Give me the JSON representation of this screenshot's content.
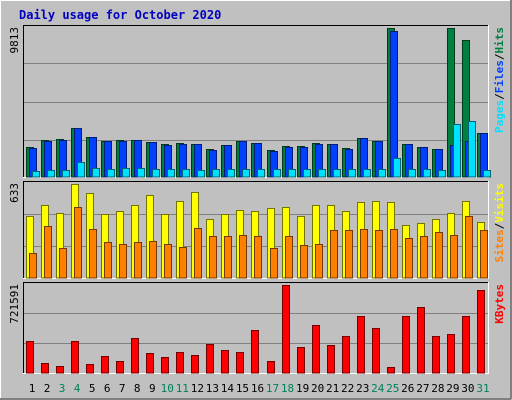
{
  "chart_data": [
    {
      "type": "bar",
      "title": "Daily usage for October 2020",
      "ymax_label": "9813",
      "ylim": [
        0,
        9813
      ],
      "legend": [
        {
          "label": "Pages",
          "color": "#00e0ff"
        },
        {
          "label": "Files",
          "color": "#0040ff"
        },
        {
          "label": "Hits",
          "color": "#008040"
        }
      ],
      "legend_separator": "/",
      "categories": [
        "1",
        "2",
        "3",
        "4",
        "5",
        "6",
        "7",
        "8",
        "9",
        "10",
        "11",
        "12",
        "13",
        "14",
        "15",
        "16",
        "17",
        "18",
        "19",
        "20",
        "21",
        "22",
        "23",
        "24",
        "25",
        "26",
        "27",
        "28",
        "29",
        "30",
        "31"
      ],
      "series": [
        {
          "name": "Hits",
          "color": "#008040",
          "values": [
            2000,
            2450,
            2500,
            3200,
            2650,
            2400,
            2450,
            2450,
            2300,
            2150,
            2250,
            2150,
            1850,
            2100,
            2400,
            2250,
            1750,
            2050,
            2050,
            2250,
            2200,
            1900,
            2600,
            2400,
            9813,
            2200,
            1950,
            1850,
            9813,
            9000,
            2900
          ]
        },
        {
          "name": "Files",
          "color": "#0040ff",
          "values": [
            1900,
            2350,
            2450,
            3200,
            2650,
            2350,
            2400,
            2450,
            2300,
            2100,
            2150,
            2150,
            1800,
            2100,
            2400,
            2250,
            1700,
            2000,
            2000,
            2200,
            2150,
            1850,
            2550,
            2350,
            9600,
            2200,
            1950,
            1850,
            2100,
            2400,
            2900
          ]
        },
        {
          "name": "Pages",
          "color": "#00e0ff",
          "values": [
            400,
            450,
            450,
            1000,
            600,
            550,
            600,
            600,
            500,
            550,
            550,
            450,
            500,
            550,
            550,
            550,
            500,
            550,
            550,
            550,
            550,
            500,
            550,
            500,
            1250,
            550,
            550,
            450,
            3500,
            3700,
            450
          ]
        }
      ]
    },
    {
      "type": "bar",
      "ymax_label": "633",
      "ylim": [
        0,
        633
      ],
      "legend": [
        {
          "label": "Sites",
          "color": "#ff8000"
        },
        {
          "label": "Visits",
          "color": "#ffff00"
        }
      ],
      "legend_separator": "/",
      "categories": [
        "1",
        "2",
        "3",
        "4",
        "5",
        "6",
        "7",
        "8",
        "9",
        "10",
        "11",
        "12",
        "13",
        "14",
        "15",
        "16",
        "17",
        "18",
        "19",
        "20",
        "21",
        "22",
        "23",
        "24",
        "25",
        "26",
        "27",
        "28",
        "29",
        "30",
        "31"
      ],
      "series": [
        {
          "name": "Visits",
          "color": "#ffff00",
          "values": [
            420,
            490,
            440,
            633,
            570,
            430,
            450,
            490,
            560,
            430,
            520,
            580,
            400,
            430,
            460,
            450,
            470,
            480,
            420,
            490,
            490,
            450,
            510,
            520,
            510,
            360,
            370,
            400,
            440,
            520,
            380
          ]
        },
        {
          "name": "Sites",
          "color": "#ff8000",
          "values": [
            170,
            350,
            200,
            480,
            330,
            240,
            230,
            240,
            250,
            230,
            210,
            340,
            280,
            280,
            290,
            280,
            200,
            280,
            220,
            230,
            320,
            320,
            330,
            320,
            330,
            270,
            280,
            310,
            290,
            420,
            320
          ]
        }
      ]
    },
    {
      "type": "bar",
      "ymax_label": "721591",
      "ylim": [
        0,
        721591
      ],
      "legend": [
        {
          "label": "KBytes",
          "color": "#ff0000"
        }
      ],
      "legend_separator": "",
      "categories": [
        "1",
        "2",
        "3",
        "4",
        "5",
        "6",
        "7",
        "8",
        "9",
        "10",
        "11",
        "12",
        "13",
        "14",
        "15",
        "16",
        "17",
        "18",
        "19",
        "20",
        "21",
        "22",
        "23",
        "24",
        "25",
        "26",
        "27",
        "28",
        "29",
        "30",
        "31"
      ],
      "series": [
        {
          "name": "KBytes",
          "color": "#ff0000",
          "values": [
            265000,
            85000,
            55000,
            265000,
            75000,
            140000,
            95000,
            290000,
            165000,
            130000,
            175000,
            150000,
            240000,
            185000,
            175000,
            350000,
            95000,
            721591,
            215000,
            390000,
            230000,
            300000,
            465000,
            365000,
            50000,
            465000,
            540000,
            305000,
            320000,
            465000,
            680000
          ]
        }
      ]
    }
  ],
  "x_labels": {
    "days": [
      "1",
      "2",
      "3",
      "4",
      "5",
      "6",
      "7",
      "8",
      "9",
      "10",
      "11",
      "12",
      "13",
      "14",
      "15",
      "16",
      "17",
      "18",
      "19",
      "20",
      "21",
      "22",
      "23",
      "24",
      "25",
      "26",
      "27",
      "28",
      "29",
      "30",
      "31"
    ],
    "weekend_days": [
      "3",
      "4",
      "10",
      "11",
      "17",
      "18",
      "24",
      "25",
      "31"
    ],
    "weekday_color": "#000000",
    "weekend_color": "#00805c"
  },
  "colors": {
    "background": "#c0c0c0",
    "plot_background": "#c0c0c0",
    "grid": "#808080",
    "title": "#0000c0",
    "border_light": "#ffffff",
    "border_dark": "#808080"
  }
}
